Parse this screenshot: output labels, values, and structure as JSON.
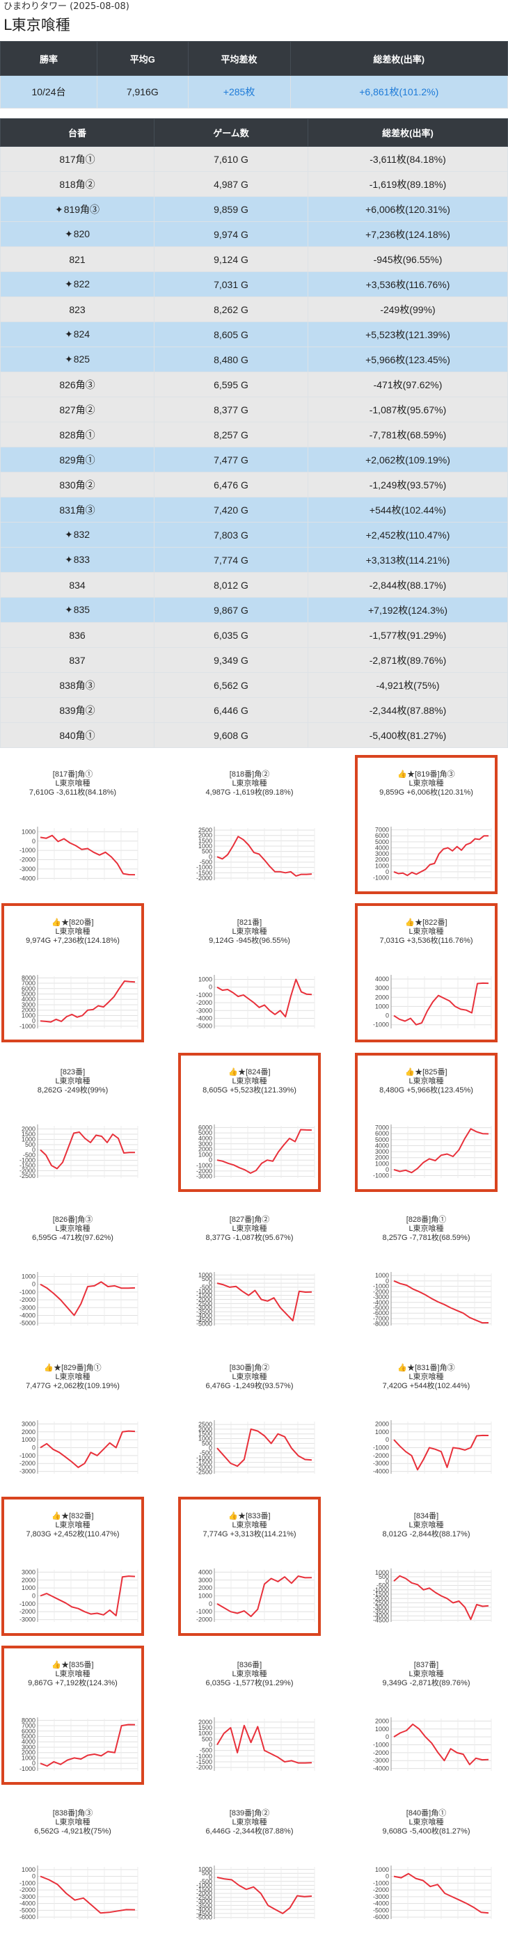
{
  "header": {
    "store": "ひまわりタワー (2025-08-08)",
    "machine": "L東京喰種"
  },
  "summary": {
    "headers": [
      "勝率",
      "平均G",
      "平均差枚",
      "総差枚(出率)"
    ],
    "values": [
      "10/24台",
      "7,916G",
      "+285枚",
      "+6,861枚(101.2%)"
    ]
  },
  "details": {
    "headers": [
      "台番",
      "ゲーム数",
      "総差枚(出率)"
    ],
    "rows": [
      {
        "no": "817角①",
        "games": "7,610 G",
        "diff": "-3,611枚(84.18%)",
        "star": false,
        "hl": false
      },
      {
        "no": "818角②",
        "games": "4,987 G",
        "diff": "-1,619枚(89.18%)",
        "star": false,
        "hl": false
      },
      {
        "no": "819角③",
        "games": "9,859 G",
        "diff": "+6,006枚(120.31%)",
        "star": true,
        "hl": true
      },
      {
        "no": "820",
        "games": "9,974 G",
        "diff": "+7,236枚(124.18%)",
        "star": true,
        "hl": true
      },
      {
        "no": "821",
        "games": "9,124 G",
        "diff": "-945枚(96.55%)",
        "star": false,
        "hl": false
      },
      {
        "no": "822",
        "games": "7,031 G",
        "diff": "+3,536枚(116.76%)",
        "star": true,
        "hl": true
      },
      {
        "no": "823",
        "games": "8,262 G",
        "diff": "-249枚(99%)",
        "star": false,
        "hl": false
      },
      {
        "no": "824",
        "games": "8,605 G",
        "diff": "+5,523枚(121.39%)",
        "star": true,
        "hl": true
      },
      {
        "no": "825",
        "games": "8,480 G",
        "diff": "+5,966枚(123.45%)",
        "star": true,
        "hl": true
      },
      {
        "no": "826角③",
        "games": "6,595 G",
        "diff": "-471枚(97.62%)",
        "star": false,
        "hl": false
      },
      {
        "no": "827角②",
        "games": "8,377 G",
        "diff": "-1,087枚(95.67%)",
        "star": false,
        "hl": false
      },
      {
        "no": "828角①",
        "games": "8,257 G",
        "diff": "-7,781枚(68.59%)",
        "star": false,
        "hl": false
      },
      {
        "no": "829角①",
        "games": "7,477 G",
        "diff": "+2,062枚(109.19%)",
        "star": false,
        "hl": true
      },
      {
        "no": "830角②",
        "games": "6,476 G",
        "diff": "-1,249枚(93.57%)",
        "star": false,
        "hl": false
      },
      {
        "no": "831角③",
        "games": "7,420 G",
        "diff": "+544枚(102.44%)",
        "star": false,
        "hl": true
      },
      {
        "no": "832",
        "games": "7,803 G",
        "diff": "+2,452枚(110.47%)",
        "star": true,
        "hl": true
      },
      {
        "no": "833",
        "games": "7,774 G",
        "diff": "+3,313枚(114.21%)",
        "star": true,
        "hl": true
      },
      {
        "no": "834",
        "games": "8,012 G",
        "diff": "-2,844枚(88.17%)",
        "star": false,
        "hl": false
      },
      {
        "no": "835",
        "games": "9,867 G",
        "diff": "+7,192枚(124.3%)",
        "star": true,
        "hl": true
      },
      {
        "no": "836",
        "games": "6,035 G",
        "diff": "-1,577枚(91.29%)",
        "star": false,
        "hl": false
      },
      {
        "no": "837",
        "games": "9,349 G",
        "diff": "-2,871枚(89.76%)",
        "star": false,
        "hl": false
      },
      {
        "no": "838角③",
        "games": "6,562 G",
        "diff": "-4,921枚(75%)",
        "star": false,
        "hl": false
      },
      {
        "no": "839角②",
        "games": "6,446 G",
        "diff": "-2,344枚(87.88%)",
        "star": false,
        "hl": false
      },
      {
        "no": "840角①",
        "games": "9,608 G",
        "diff": "-5,400枚(81.27%)",
        "star": false,
        "hl": false
      }
    ]
  },
  "chart_data": [
    {
      "type": "line",
      "t1": "[817番]角①",
      "t2": "L東京喰種",
      "t3": "7,610G -3,611枚(84.18%)",
      "thumb": false,
      "box": false,
      "yticks": [
        1000,
        0,
        -1000,
        -2000,
        -3000,
        -4000
      ],
      "ylim": [
        -4200,
        1400
      ],
      "values": [
        400,
        300,
        600,
        -50,
        250,
        -200,
        -500,
        -900,
        -800,
        -1200,
        -1500,
        -1200,
        -1700,
        -2400,
        -3500,
        -3600,
        -3611
      ]
    },
    {
      "type": "line",
      "t1": "[818番]角②",
      "t2": "L東京喰種",
      "t3": "4,987G -1,619枚(89.18%)",
      "thumb": false,
      "box": false,
      "yticks": [
        2500,
        2000,
        1500,
        1000,
        500,
        0,
        -500,
        -1000,
        -1500,
        -2000
      ],
      "ylim": [
        -2200,
        2700
      ],
      "values": [
        0,
        -200,
        200,
        1000,
        1900,
        1600,
        1100,
        400,
        250,
        -300,
        -900,
        -1400,
        -1400,
        -1500,
        -1400,
        -1800,
        -1650,
        -1650,
        -1619
      ]
    },
    {
      "type": "line",
      "t1": "[819番]角③",
      "t2": "L東京喰種",
      "t3": "9,859G +6,006枚(120.31%)",
      "thumb": true,
      "box": true,
      "yticks": [
        7000,
        6000,
        5000,
        4000,
        3000,
        2000,
        1000,
        0,
        -1000
      ],
      "ylim": [
        -1400,
        7300
      ],
      "values": [
        0,
        -300,
        -200,
        -600,
        -100,
        -400,
        0,
        400,
        1200,
        1400,
        3000,
        3800,
        4000,
        3500,
        4200,
        3600,
        4500,
        4800,
        5500,
        5400,
        6000,
        6006
      ]
    },
    {
      "type": "line",
      "t1": "[820番]",
      "t2": "L東京喰種",
      "t3": "9,974G +7,236枚(124.18%)",
      "thumb": true,
      "box": true,
      "yticks": [
        8000,
        7000,
        6000,
        5000,
        4000,
        3000,
        2000,
        1000,
        0,
        -1000
      ],
      "ylim": [
        -1400,
        8300
      ],
      "values": [
        0,
        -100,
        -200,
        300,
        -100,
        800,
        1200,
        700,
        1000,
        2000,
        2100,
        2800,
        2600,
        3500,
        4500,
        6000,
        7400,
        7300,
        7236
      ]
    },
    {
      "type": "line",
      "t1": "[821番]",
      "t2": "L東京喰種",
      "t3": "9,124G -945枚(96.55%)",
      "thumb": false,
      "box": false,
      "yticks": [
        1000,
        0,
        -1000,
        -2000,
        -3000,
        -4000,
        -5000
      ],
      "ylim": [
        -5300,
        1400
      ],
      "values": [
        0,
        -400,
        -300,
        -700,
        -1200,
        -1000,
        -1500,
        -2000,
        -2600,
        -2300,
        -3000,
        -3500,
        -3000,
        -3800,
        -1200,
        1000,
        -600,
        -900,
        -945
      ]
    },
    {
      "type": "line",
      "t1": "[822番]",
      "t2": "L東京喰種",
      "t3": "7,031G +3,536枚(116.76%)",
      "thumb": true,
      "box": true,
      "yticks": [
        4000,
        3000,
        2000,
        1000,
        0,
        -1000
      ],
      "ylim": [
        -1400,
        4300
      ],
      "values": [
        0,
        -400,
        -600,
        -300,
        -1000,
        -800,
        500,
        1500,
        2200,
        1900,
        1600,
        1000,
        700,
        600,
        300,
        3500,
        3550,
        3536
      ]
    },
    {
      "type": "line",
      "t1": "[823番]",
      "t2": "L東京喰種",
      "t3": "8,262G -249枚(99%)",
      "thumb": false,
      "box": false,
      "yticks": [
        2000,
        1500,
        1000,
        500,
        0,
        -500,
        -1000,
        -1500,
        -2000,
        -2500
      ],
      "ylim": [
        -2700,
        2300
      ],
      "values": [
        0,
        -500,
        -1500,
        -1800,
        -1200,
        200,
        1600,
        1700,
        1100,
        700,
        1400,
        1300,
        700,
        1500,
        1100,
        -300,
        -250,
        -249
      ]
    },
    {
      "type": "line",
      "t1": "[824番]",
      "t2": "L東京喰種",
      "t3": "8,605G +5,523枚(121.39%)",
      "thumb": true,
      "box": true,
      "yticks": [
        6000,
        5000,
        4000,
        3000,
        2000,
        1000,
        0,
        -1000,
        -2000,
        -3000
      ],
      "ylim": [
        -3300,
        6300
      ],
      "values": [
        0,
        -200,
        -600,
        -900,
        -1400,
        -1800,
        -2400,
        -1900,
        -600,
        0,
        -200,
        1500,
        2800,
        4000,
        3400,
        5600,
        5550,
        5523
      ]
    },
    {
      "type": "line",
      "t1": "[825番]",
      "t2": "L東京喰種",
      "t3": "8,480G +5,966枚(123.45%)",
      "thumb": true,
      "box": true,
      "yticks": [
        7000,
        6000,
        5000,
        4000,
        3000,
        2000,
        1000,
        0,
        -1000
      ],
      "ylim": [
        -1400,
        7300
      ],
      "values": [
        0,
        -300,
        -100,
        -500,
        200,
        1200,
        1800,
        1500,
        2400,
        2600,
        2200,
        3300,
        5200,
        6800,
        6300,
        6000,
        5966
      ]
    },
    {
      "type": "line",
      "t1": "[826番]角③",
      "t2": "L東京喰種",
      "t3": "6,595G -471枚(97.62%)",
      "thumb": false,
      "box": false,
      "yticks": [
        1000,
        0,
        -1000,
        -2000,
        -3000,
        -4000,
        -5000
      ],
      "ylim": [
        -5300,
        1400
      ],
      "values": [
        0,
        -500,
        -1200,
        -2000,
        -3000,
        -4000,
        -2500,
        -300,
        -200,
        300,
        -300,
        -200,
        -500,
        -500,
        -471
      ]
    },
    {
      "type": "line",
      "t1": "[827番]角②",
      "t2": "L東京喰種",
      "t3": "8,377G -1,087枚(95.67%)",
      "thumb": false,
      "box": false,
      "yticks": [
        1000,
        500,
        0,
        -500,
        -1000,
        -1500,
        -2000,
        -2500,
        -3000,
        -3500,
        -4000,
        -4500,
        -5000
      ],
      "ylim": [
        -5200,
        1200
      ],
      "values": [
        0,
        -200,
        -500,
        -400,
        -1000,
        -1500,
        -900,
        -2000,
        -2200,
        -1800,
        -3000,
        -3800,
        -4600,
        -1000,
        -1100,
        -1087
      ]
    },
    {
      "type": "line",
      "t1": "[828番]角①",
      "t2": "L東京喰種",
      "t3": "8,257G -7,781枚(68.59%)",
      "thumb": false,
      "box": false,
      "yticks": [
        1000,
        0,
        -1000,
        -2000,
        -3000,
        -4000,
        -5000,
        -6000,
        -7000,
        -8000
      ],
      "ylim": [
        -8300,
        1400
      ],
      "values": [
        0,
        -500,
        -800,
        -1500,
        -2000,
        -2600,
        -3300,
        -3900,
        -4400,
        -5000,
        -5500,
        -6000,
        -6800,
        -7300,
        -7800,
        -7781
      ]
    },
    {
      "type": "line",
      "t1": "[829番]角①",
      "t2": "L東京喰種",
      "t3": "7,477G +2,062枚(109.19%)",
      "thumb": true,
      "box": false,
      "yticks": [
        3000,
        2000,
        1000,
        0,
        -1000,
        -2000,
        -3000
      ],
      "ylim": [
        -3300,
        3300
      ],
      "values": [
        0,
        500,
        -200,
        -600,
        -1200,
        -1800,
        -2500,
        -2000,
        -600,
        -1000,
        -200,
        600,
        0,
        2000,
        2100,
        2062
      ]
    },
    {
      "type": "line",
      "t1": "[830番]角②",
      "t2": "L東京喰種",
      "t3": "6,476G -1,249枚(93.57%)",
      "thumb": false,
      "box": false,
      "yticks": [
        2500,
        2000,
        1500,
        1000,
        500,
        0,
        -500,
        -1000,
        -1500,
        -2000,
        -2500
      ],
      "ylim": [
        -2700,
        2800
      ],
      "values": [
        0,
        -800,
        -1600,
        -1900,
        -1200,
        2000,
        1800,
        1300,
        500,
        1500,
        1200,
        0,
        -800,
        -1200,
        -1249
      ]
    },
    {
      "type": "line",
      "t1": "[831番]角③",
      "t2": "L東京喰種",
      "t3": "7,420G +544枚(102.44%)",
      "thumb": true,
      "box": false,
      "yticks": [
        2000,
        1000,
        0,
        -1000,
        -2000,
        -3000,
        -4000
      ],
      "ylim": [
        -4300,
        2300
      ],
      "values": [
        0,
        -800,
        -1500,
        -2000,
        -3800,
        -2500,
        -1000,
        -1200,
        -1500,
        -3500,
        -1000,
        -1100,
        -1300,
        -1000,
        500,
        550,
        544
      ]
    },
    {
      "type": "line",
      "t1": "[832番]",
      "t2": "L東京喰種",
      "t3": "7,803G +2,452枚(110.47%)",
      "thumb": true,
      "box": true,
      "yticks": [
        3000,
        2000,
        1000,
        0,
        -1000,
        -2000,
        -3000
      ],
      "ylim": [
        -3300,
        3300
      ],
      "values": [
        0,
        300,
        -100,
        -500,
        -900,
        -1400,
        -1600,
        -2000,
        -2300,
        -2200,
        -2400,
        -1800,
        -2500,
        2400,
        2500,
        2452
      ]
    },
    {
      "type": "line",
      "t1": "[833番]",
      "t2": "L東京喰種",
      "t3": "7,774G +3,313枚(114.21%)",
      "thumb": true,
      "box": true,
      "yticks": [
        4000,
        3000,
        2000,
        1000,
        0,
        -1000,
        -2000
      ],
      "ylim": [
        -2300,
        4300
      ],
      "values": [
        0,
        -500,
        -1000,
        -1200,
        -900,
        -1600,
        -700,
        2500,
        3200,
        2800,
        3400,
        2600,
        3500,
        3300,
        3313
      ]
    },
    {
      "type": "line",
      "t1": "[834番]",
      "t2": "L東京喰種",
      "t3": "8,012G -2,844枚(88.17%)",
      "thumb": false,
      "box": false,
      "yticks": [
        1000,
        500,
        0,
        -500,
        -1000,
        -1500,
        -2000,
        -2500,
        -3000,
        -3500,
        -4000,
        -4500
      ],
      "ylim": [
        -4700,
        1300
      ],
      "values": [
        0,
        600,
        300,
        -200,
        -400,
        -1000,
        -800,
        -1300,
        -1700,
        -2000,
        -2500,
        -2300,
        -3000,
        -4400,
        -2700,
        -2900,
        -2844
      ]
    },
    {
      "type": "line",
      "t1": "[835番]",
      "t2": "L東京喰種",
      "t3": "9,867G +7,192枚(124.3%)",
      "thumb": true,
      "box": true,
      "yticks": [
        8000,
        7000,
        6000,
        5000,
        4000,
        3000,
        2000,
        1000,
        0,
        -1000
      ],
      "ylim": [
        -1400,
        8300
      ],
      "values": [
        0,
        -500,
        300,
        -200,
        600,
        1000,
        800,
        1500,
        1700,
        1400,
        2200,
        2000,
        7000,
        7200,
        7192
      ]
    },
    {
      "type": "line",
      "t1": "[836番]",
      "t2": "L東京喰種",
      "t3": "6,035G -1,577枚(91.29%)",
      "thumb": false,
      "box": false,
      "yticks": [
        2000,
        1500,
        1000,
        500,
        0,
        -500,
        -1000,
        -1500,
        -2000
      ],
      "ylim": [
        -2300,
        2300
      ],
      "values": [
        0,
        1000,
        1500,
        -700,
        1700,
        200,
        1600,
        -500,
        -800,
        -1100,
        -1500,
        -1400,
        -1600,
        -1600,
        -1577
      ]
    },
    {
      "type": "line",
      "t1": "[837番]",
      "t2": "L東京喰種",
      "t3": "9,349G -2,871枚(89.76%)",
      "thumb": false,
      "box": false,
      "yticks": [
        2000,
        1000,
        0,
        -1000,
        -2000,
        -3000,
        -4000
      ],
      "ylim": [
        -4300,
        2300
      ],
      "values": [
        0,
        500,
        800,
        1600,
        1000,
        0,
        -800,
        -2000,
        -3000,
        -1500,
        -2000,
        -2200,
        -3500,
        -2700,
        -2900,
        -2871
      ]
    },
    {
      "type": "line",
      "t1": "[838番]角③",
      "t2": "L東京喰種",
      "t3": "6,562G -4,921枚(75%)",
      "thumb": false,
      "box": false,
      "yticks": [
        1000,
        0,
        -1000,
        -2000,
        -3000,
        -4000,
        -5000,
        -6000
      ],
      "ylim": [
        -6300,
        1400
      ],
      "values": [
        0,
        -500,
        -1200,
        -2500,
        -3500,
        -3200,
        -4300,
        -5400,
        -5300,
        -5100,
        -4900,
        -4921
      ]
    },
    {
      "type": "line",
      "t1": "[839番]角②",
      "t2": "L東京喰種",
      "t3": "6,446G -2,344枚(87.88%)",
      "thumb": false,
      "box": false,
      "yticks": [
        1000,
        500,
        0,
        -500,
        -1000,
        -1500,
        -2000,
        -2500,
        -3000,
        -3500,
        -4000,
        -4500,
        -5000
      ],
      "ylim": [
        -5200,
        1300
      ],
      "values": [
        0,
        -200,
        -300,
        -1000,
        -1500,
        -1200,
        -2000,
        -3500,
        -4000,
        -4500,
        -3800,
        -2300,
        -2400,
        -2344
      ]
    },
    {
      "type": "line",
      "t1": "[840番]角①",
      "t2": "L東京喰種",
      "t3": "9,608G -5,400枚(81.27%)",
      "thumb": false,
      "box": false,
      "yticks": [
        1000,
        0,
        -1000,
        -2000,
        -3000,
        -4000,
        -5000,
        -6000
      ],
      "ylim": [
        -6300,
        1400
      ],
      "values": [
        0,
        -200,
        400,
        -300,
        -600,
        -1500,
        -1200,
        -2500,
        -3000,
        -3500,
        -4000,
        -4600,
        -5300,
        -5400
      ]
    }
  ],
  "colors": {
    "header_bg": "#353a40",
    "row_gray": "#e8e8e8",
    "row_blue": "#bfdcf2",
    "plus_blue": "#1e7bd8",
    "line_red": "#e8303a",
    "highlight_border": "#d9441f"
  }
}
